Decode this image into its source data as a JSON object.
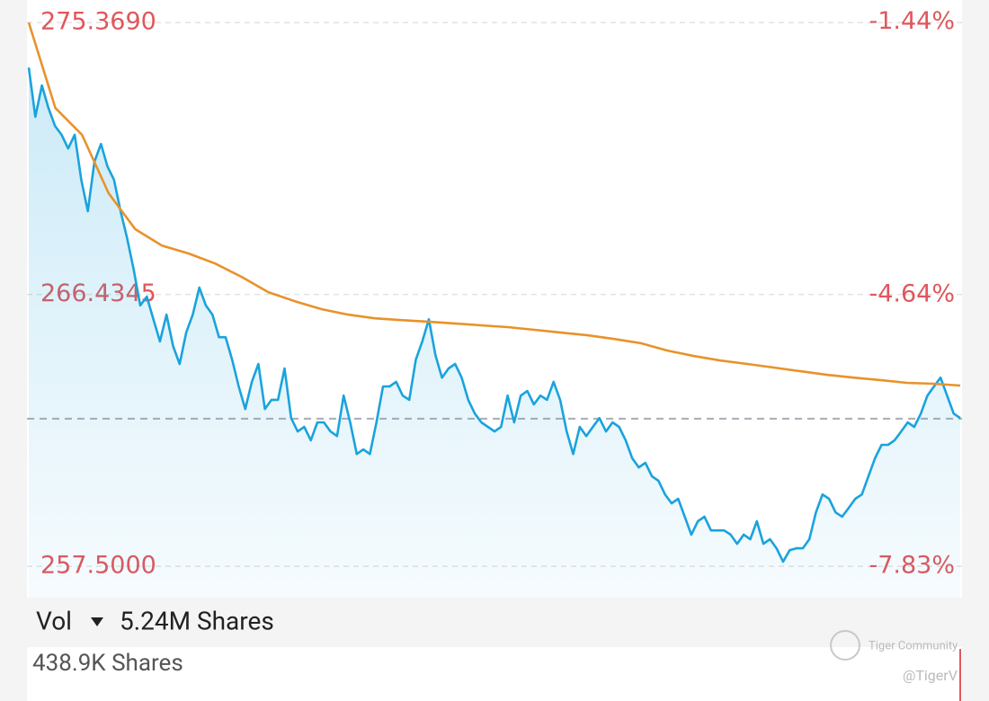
{
  "chart_data": {
    "type": "line",
    "ylim": [
      256.47,
      276.11
    ],
    "yticks": [
      {
        "value": 257.5,
        "label": "257.5000"
      },
      266.4345,
      {
        "value": 275.369,
        "label": "275.3690"
      }
    ],
    "y2lim": [
      -8.2,
      -1.18
    ],
    "y2ticks": [
      {
        "value": -7.83,
        "label": "-7.83%"
      },
      {
        "value": -4.64,
        "label": "-4.64%"
      },
      {
        "value": -1.44,
        "label": "-1.44%"
      }
    ],
    "grid": true,
    "reference_line": 262.35,
    "series": [
      {
        "color": "#1aa3dd",
        "area": true,
        "values": [
          273.89,
          272.27,
          273.3,
          272.56,
          271.97,
          271.68,
          271.23,
          271.68,
          270.2,
          269.17,
          270.79,
          271.38,
          270.64,
          270.2,
          269.17,
          268.28,
          267.25,
          266.07,
          266.36,
          265.62,
          264.89,
          265.77,
          264.74,
          264.15,
          265.18,
          265.77,
          266.66,
          266.07,
          265.77,
          265.03,
          265.03,
          264.29,
          263.41,
          262.67,
          263.56,
          264.15,
          262.67,
          262.97,
          262.97,
          264.0,
          262.37,
          261.93,
          262.08,
          261.64,
          262.23,
          262.23,
          261.93,
          261.78,
          263.11,
          262.23,
          261.19,
          261.34,
          261.19,
          262.23,
          263.41,
          263.41,
          263.56,
          263.11,
          262.97,
          264.29,
          264.89,
          265.62,
          264.44,
          263.7,
          264.0,
          264.15,
          263.7,
          262.97,
          262.52,
          262.23,
          262.08,
          261.93,
          262.08,
          263.11,
          262.23,
          263.11,
          263.26,
          262.82,
          263.11,
          262.97,
          263.56,
          262.97,
          261.93,
          261.19,
          262.08,
          261.78,
          262.08,
          262.37,
          261.93,
          262.23,
          262.08,
          261.64,
          261.05,
          260.75,
          260.9,
          260.46,
          260.31,
          259.86,
          259.57,
          259.72,
          259.13,
          258.54,
          258.98,
          259.13,
          258.68,
          258.68,
          258.68,
          258.54,
          258.24,
          258.54,
          258.39,
          258.98,
          258.24,
          258.39,
          258.09,
          257.65,
          258.03,
          258.09,
          258.09,
          258.39,
          259.27,
          259.86,
          259.72,
          259.27,
          259.13,
          259.42,
          259.72,
          259.86,
          260.46,
          261.05,
          261.49,
          261.49,
          261.64,
          261.93,
          262.23,
          262.08,
          262.52,
          263.11,
          263.41,
          263.7,
          263.11,
          262.52,
          262.37
        ]
      },
      {
        "color": "#e8922a",
        "area": false,
        "values": [
          275.37,
          272.56,
          271.68,
          269.76,
          268.58,
          268.04,
          267.78,
          267.45,
          267.01,
          266.51,
          266.21,
          265.95,
          265.77,
          265.65,
          265.59,
          265.54,
          265.48,
          265.42,
          265.36,
          265.27,
          265.18,
          265.09,
          264.97,
          264.83,
          264.59,
          264.41,
          264.26,
          264.15,
          264.03,
          263.91,
          263.79,
          263.7,
          263.62,
          263.53,
          263.5,
          263.44
        ]
      }
    ]
  },
  "volume": {
    "label": "Vol",
    "total": "5.24M Shares",
    "bar": "438.9K Shares"
  },
  "watermark": {
    "brand": "Tiger Community",
    "handle": "@TigerV"
  }
}
